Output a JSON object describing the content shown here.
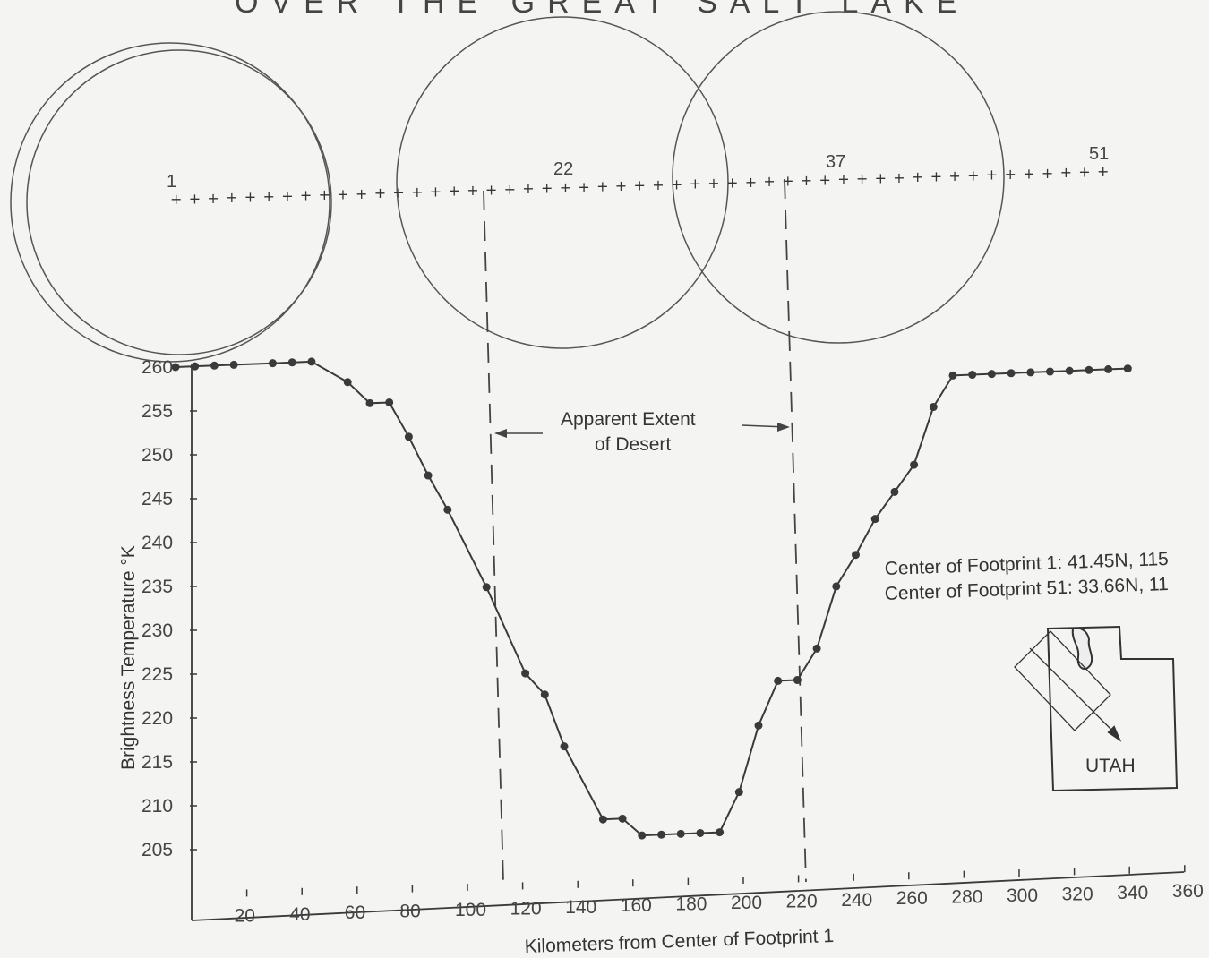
{
  "header": {
    "title": "OVER THE GREAT SALT LAKE"
  },
  "chart_data": {
    "type": "line",
    "xlabel": "Kilometers from Center of Footprint 1",
    "ylabel": "Brightness Temperature °K",
    "xlim": [
      0,
      360
    ],
    "ylim": [
      200,
      260
    ],
    "x_ticks": [
      20,
      40,
      60,
      80,
      100,
      120,
      140,
      160,
      180,
      200,
      220,
      240,
      260,
      280,
      300,
      320,
      340,
      360
    ],
    "y_ticks": [
      205,
      210,
      215,
      220,
      225,
      230,
      235,
      240,
      245,
      250,
      255,
      260
    ],
    "series": [
      {
        "points": [
          [
            0,
            260
          ],
          [
            7,
            260
          ],
          [
            14,
            260
          ],
          [
            21,
            260
          ],
          [
            35,
            260
          ],
          [
            42,
            260
          ],
          [
            49,
            260
          ],
          [
            62,
            257.5
          ],
          [
            70,
            255
          ],
          [
            77,
            255
          ],
          [
            84,
            251
          ],
          [
            91,
            246.5
          ],
          [
            98,
            242.5
          ],
          [
            112,
            233.5
          ],
          [
            126,
            223.5
          ],
          [
            133,
            221
          ],
          [
            140,
            215
          ],
          [
            154,
            206.5
          ],
          [
            161,
            206.5
          ],
          [
            168,
            204.5
          ],
          [
            175,
            204.5
          ],
          [
            182,
            204.5
          ],
          [
            189,
            204.5
          ],
          [
            196,
            204.5
          ],
          [
            203,
            209
          ],
          [
            210,
            216.5
          ],
          [
            217,
            221.5
          ],
          [
            224,
            221.5
          ],
          [
            231,
            225
          ],
          [
            238,
            232
          ],
          [
            245,
            235.5
          ],
          [
            252,
            239.5
          ],
          [
            259,
            242.5
          ],
          [
            266,
            245.5
          ],
          [
            273,
            252
          ],
          [
            280,
            255.5
          ],
          [
            287,
            255.5
          ],
          [
            294,
            255.5
          ],
          [
            301,
            255.5
          ],
          [
            308,
            255.5
          ],
          [
            315,
            255.5
          ],
          [
            322,
            255.5
          ],
          [
            329,
            255.5
          ],
          [
            336,
            255.5
          ],
          [
            343,
            255.5
          ]
        ]
      }
    ],
    "footprints": {
      "labels": [
        "1",
        "22",
        "37",
        "51"
      ],
      "count": 51,
      "x_first": 0,
      "x_last": 343
    },
    "desert_boundaries_km": [
      112,
      217
    ],
    "annotations": {
      "desert_line1": "Apparent Extent",
      "desert_line2": "of Desert",
      "center1": "Center of Footprint 1: 41.45N, 115",
      "center51": "Center of Footprint 51: 33.66N, 11",
      "state": "UTAH"
    }
  },
  "colors": {
    "ink": "#3a3a3a",
    "paper": "#f4f4f2"
  }
}
